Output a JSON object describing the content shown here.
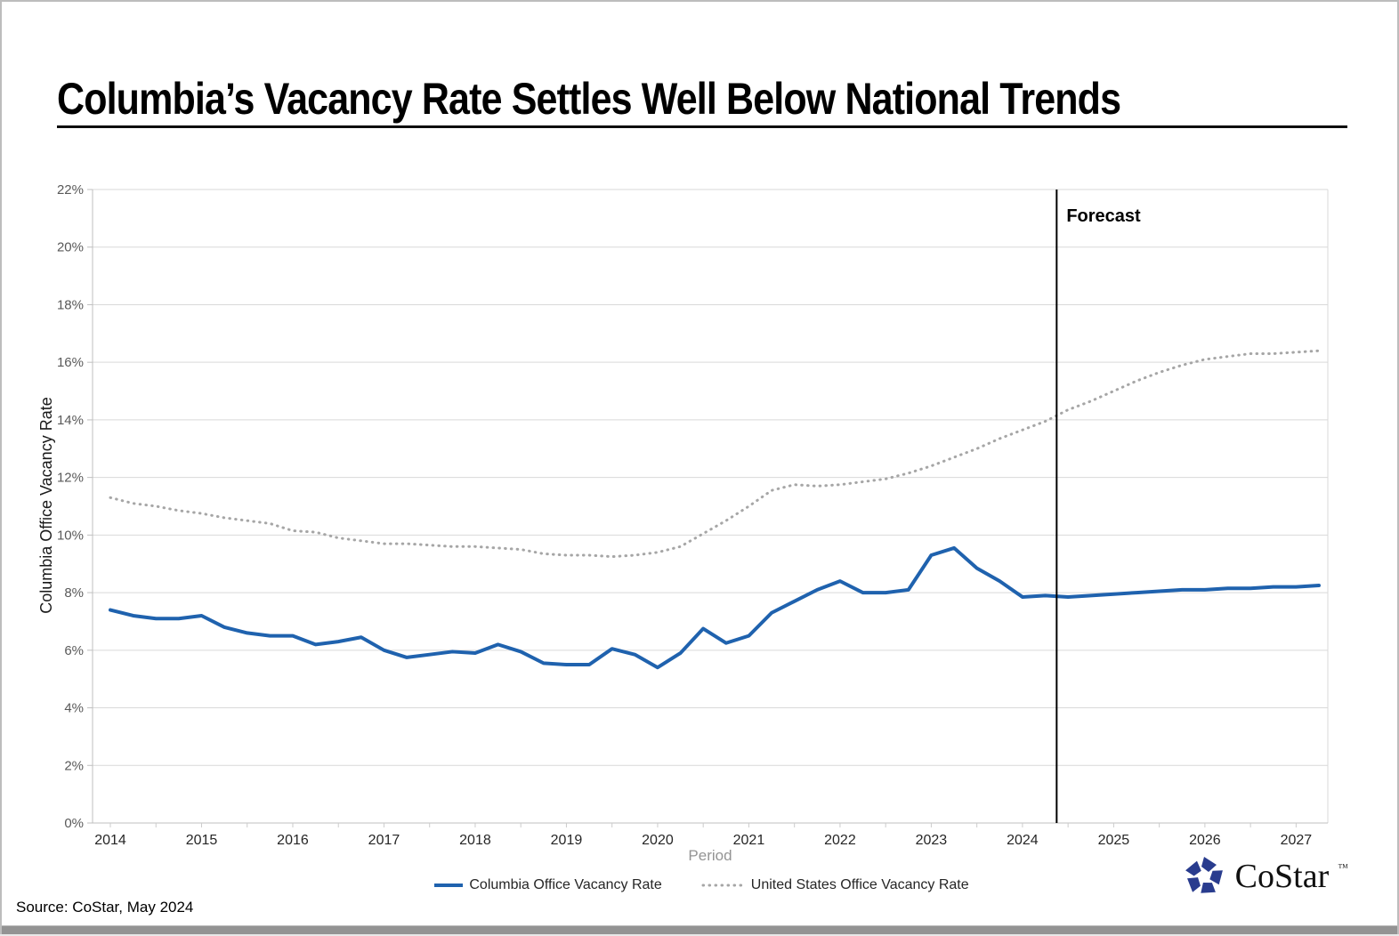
{
  "page": {
    "title": "Columbia’s Vacancy Rate Settles Well Below National Trends",
    "source_note": "Source: CoStar, May 2024",
    "logo": {
      "text": "CoStar",
      "tm": "™",
      "icon": "costar-pinwheel-icon",
      "color": "#293c8e"
    }
  },
  "chart_data": {
    "type": "line",
    "title": "Columbia’s Vacancy Rate Settles Well Below National Trends",
    "xlabel": "Period",
    "ylabel": "Columbia Office Vacancy Rate",
    "ylim": [
      0,
      22
    ],
    "y_tick_step": 2,
    "y_tick_suffix": "%",
    "x_frequency": "quarterly",
    "x_tick_labels": [
      "2014",
      "2015",
      "2016",
      "2017",
      "2018",
      "2019",
      "2020",
      "2021",
      "2022",
      "2023",
      "2024",
      "2025",
      "2026",
      "2027"
    ],
    "grid": "horizontal",
    "legend_position": "bottom",
    "forecast": {
      "label": "Forecast",
      "starts_after_index": 41,
      "line_color": "#000000"
    },
    "series": [
      {
        "name": "Columbia Office Vacancy Rate",
        "style": "solid",
        "color": "#1f62ae",
        "values": [
          7.4,
          7.2,
          7.1,
          7.1,
          7.2,
          6.8,
          6.6,
          6.5,
          6.5,
          6.2,
          6.3,
          6.45,
          6.0,
          5.75,
          5.85,
          5.95,
          5.9,
          6.2,
          5.95,
          5.55,
          5.5,
          5.5,
          6.05,
          5.85,
          5.4,
          5.9,
          6.75,
          6.25,
          6.5,
          7.3,
          7.7,
          8.1,
          8.4,
          8.0,
          8.0,
          8.1,
          9.3,
          9.55,
          8.85,
          8.4,
          7.85,
          7.9,
          7.85,
          7.9,
          7.95,
          8.0,
          8.05,
          8.1,
          8.1,
          8.15,
          8.15,
          8.2,
          8.2,
          8.25
        ]
      },
      {
        "name": "United States Office Vacancy Rate",
        "style": "dotted",
        "color": "#a6a6a6",
        "values": [
          11.3,
          11.1,
          11.0,
          10.85,
          10.75,
          10.6,
          10.5,
          10.4,
          10.15,
          10.1,
          9.9,
          9.8,
          9.7,
          9.7,
          9.65,
          9.6,
          9.6,
          9.55,
          9.5,
          9.35,
          9.3,
          9.3,
          9.25,
          9.3,
          9.4,
          9.6,
          10.05,
          10.5,
          11.0,
          11.55,
          11.75,
          11.7,
          11.75,
          11.85,
          11.95,
          12.15,
          12.4,
          12.7,
          13.0,
          13.35,
          13.65,
          13.95,
          14.35,
          14.65,
          15.0,
          15.35,
          15.65,
          15.9,
          16.1,
          16.2,
          16.3,
          16.3,
          16.35,
          16.4
        ]
      }
    ]
  }
}
